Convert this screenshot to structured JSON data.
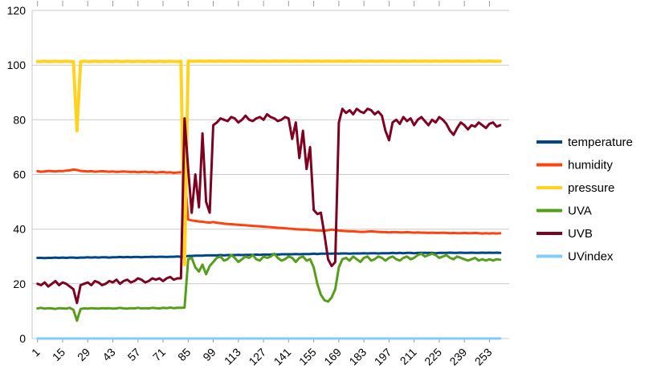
{
  "chart_data": {
    "type": "line",
    "title": "",
    "xlabel": "",
    "ylabel": "",
    "grid": true,
    "legend_position": "right",
    "style": {
      "background": "#ffffff",
      "grid_color": "#c9c9c9",
      "tick_color": "#999999",
      "text_color": "#000000"
    },
    "x": {
      "start": 1,
      "step": 2,
      "count": 130
    },
    "x_axis": {
      "ticks": [
        1,
        15,
        29,
        43,
        57,
        71,
        85,
        99,
        113,
        127,
        141,
        155,
        169,
        183,
        197,
        211,
        225,
        239,
        253
      ],
      "range": [
        -2,
        264
      ]
    },
    "y_axis": {
      "ticks": [
        0,
        20,
        40,
        60,
        80,
        100,
        120
      ],
      "range": [
        0,
        120
      ]
    },
    "series": [
      {
        "name": "temperature",
        "color": "#004586",
        "width": 3,
        "values": [
          29.5,
          29.5,
          29.4,
          29.5,
          29.5,
          29.6,
          29.5,
          29.6,
          29.5,
          29.6,
          29.6,
          29.5,
          29.6,
          29.6,
          29.7,
          29.6,
          29.7,
          29.6,
          29.7,
          29.7,
          29.6,
          29.7,
          29.7,
          29.8,
          29.7,
          29.8,
          29.7,
          29.8,
          29.8,
          29.7,
          29.8,
          29.8,
          29.9,
          29.8,
          29.9,
          29.9,
          29.8,
          29.9,
          29.9,
          30.0,
          29.9,
          30.0,
          30.2,
          30.2,
          30.3,
          30.3,
          30.3,
          30.4,
          30.4,
          30.4,
          30.4,
          30.5,
          30.4,
          30.5,
          30.5,
          30.5,
          30.6,
          30.5,
          30.6,
          30.6,
          30.6,
          30.7,
          30.6,
          30.7,
          30.7,
          30.7,
          30.8,
          30.7,
          30.8,
          30.8,
          30.8,
          30.8,
          30.9,
          30.8,
          30.9,
          30.9,
          30.9,
          31.0,
          30.9,
          31.0,
          31.0,
          31.0,
          31.0,
          31.1,
          31.0,
          31.1,
          31.1,
          31.0,
          31.1,
          31.1,
          31.1,
          31.2,
          31.1,
          31.2,
          31.2,
          31.1,
          31.2,
          31.2,
          31.2,
          31.3,
          31.2,
          31.3,
          31.2,
          31.3,
          31.3,
          31.2,
          31.3,
          31.3,
          31.3,
          31.3,
          31.3,
          31.2,
          31.3,
          31.3,
          31.3,
          31.4,
          31.3,
          31.3,
          31.4,
          31.3,
          31.3,
          31.4,
          31.3,
          31.3,
          31.4,
          31.3,
          31.4,
          31.3,
          31.4,
          31.3
        ]
      },
      {
        "name": "humidity",
        "color": "#ff420e",
        "width": 3,
        "values": [
          61.2,
          61.0,
          61.1,
          61.3,
          61.2,
          61.1,
          61.3,
          61.2,
          61.4,
          61.5,
          61.8,
          61.6,
          61.3,
          61.2,
          61.1,
          61.2,
          61.0,
          61.1,
          61.2,
          61.1,
          61.0,
          61.1,
          60.9,
          61.0,
          61.1,
          61.0,
          60.9,
          61.0,
          60.8,
          60.9,
          61.0,
          60.8,
          60.9,
          60.7,
          60.8,
          60.9,
          60.7,
          60.8,
          60.6,
          60.7,
          60.8,
          60.6,
          43.5,
          43.2,
          43.0,
          42.8,
          42.7,
          42.5,
          42.4,
          42.6,
          42.3,
          42.2,
          42.0,
          41.9,
          41.8,
          41.7,
          41.6,
          41.5,
          41.4,
          41.3,
          41.2,
          41.1,
          41.0,
          40.9,
          40.8,
          40.7,
          40.6,
          40.5,
          40.4,
          40.3,
          40.2,
          40.1,
          40.0,
          39.9,
          39.8,
          39.8,
          39.7,
          39.6,
          39.5,
          39.5,
          39.4,
          39.6,
          39.8,
          39.7,
          39.5,
          39.4,
          39.3,
          39.2,
          39.2,
          39.1,
          39.0,
          39.0,
          39.1,
          39.2,
          39.1,
          39.0,
          38.9,
          38.9,
          38.8,
          38.9,
          38.9,
          38.8,
          38.8,
          38.9,
          38.8,
          38.7,
          38.8,
          38.7,
          38.7,
          38.6,
          38.7,
          38.6,
          38.6,
          38.7,
          38.6,
          38.5,
          38.6,
          38.5,
          38.5,
          38.6,
          38.5,
          38.5,
          38.6,
          38.5,
          38.4,
          38.5,
          38.4,
          38.5,
          38.4,
          38.5
        ]
      },
      {
        "name": "pressure",
        "color": "#ffd320",
        "width": 4,
        "values": [
          101.3,
          101.3,
          101.4,
          101.3,
          101.3,
          101.4,
          101.3,
          101.3,
          101.4,
          101.3,
          101.3,
          76.0,
          101.3,
          101.4,
          101.3,
          101.3,
          101.4,
          101.3,
          101.3,
          101.4,
          101.3,
          101.3,
          101.4,
          101.3,
          101.3,
          101.4,
          101.3,
          101.3,
          101.4,
          101.3,
          101.3,
          101.4,
          101.3,
          101.3,
          101.4,
          101.3,
          101.3,
          101.4,
          101.3,
          101.3,
          101.4,
          27.0,
          101.5,
          101.4,
          101.4,
          101.5,
          101.4,
          101.4,
          101.5,
          101.4,
          101.4,
          101.5,
          101.4,
          101.4,
          101.5,
          101.4,
          101.4,
          101.5,
          101.4,
          101.4,
          101.5,
          101.4,
          101.4,
          101.5,
          101.4,
          101.4,
          101.5,
          101.4,
          101.4,
          101.5,
          101.4,
          101.4,
          101.5,
          101.4,
          101.4,
          101.5,
          101.4,
          101.4,
          101.5,
          101.4,
          101.4,
          101.5,
          101.4,
          101.4,
          101.5,
          101.4,
          101.4,
          101.5,
          101.4,
          101.4,
          101.5,
          101.4,
          101.4,
          101.5,
          101.4,
          101.4,
          101.5,
          101.4,
          101.4,
          101.5,
          101.4,
          101.4,
          101.5,
          101.4,
          101.4,
          101.5,
          101.4,
          101.4,
          101.5,
          101.4,
          101.4,
          101.5,
          101.4,
          101.4,
          101.5,
          101.4,
          101.4,
          101.5,
          101.4,
          101.4,
          101.5,
          101.4,
          101.4,
          101.5,
          101.4,
          101.4,
          101.5,
          101.4,
          101.4,
          101.4
        ]
      },
      {
        "name": "UVA",
        "color": "#579d1c",
        "width": 3,
        "values": [
          11.0,
          11.2,
          10.9,
          11.1,
          11.0,
          10.8,
          11.1,
          11.0,
          10.9,
          11.2,
          10.5,
          6.5,
          10.8,
          11.0,
          10.9,
          11.1,
          11.0,
          10.9,
          11.1,
          11.0,
          11.1,
          10.9,
          11.0,
          11.2,
          11.0,
          10.9,
          11.1,
          11.0,
          11.2,
          11.0,
          11.1,
          11.0,
          11.2,
          11.1,
          11.0,
          11.2,
          11.1,
          11.3,
          11.1,
          11.2,
          11.2,
          11.3,
          29.0,
          29.5,
          26.0,
          24.5,
          27.0,
          23.5,
          26.5,
          28.0,
          29.5,
          30.0,
          28.5,
          29.0,
          30.5,
          29.5,
          28.0,
          29.0,
          30.0,
          29.5,
          30.5,
          29.0,
          28.5,
          30.0,
          29.5,
          30.0,
          31.0,
          29.5,
          28.5,
          29.0,
          30.0,
          29.5,
          28.0,
          29.5,
          30.0,
          28.5,
          29.0,
          26.0,
          20.0,
          16.0,
          14.0,
          13.5,
          15.0,
          18.0,
          26.0,
          29.0,
          29.5,
          28.5,
          30.0,
          29.0,
          28.0,
          29.5,
          30.0,
          28.5,
          29.0,
          30.0,
          29.5,
          28.5,
          29.5,
          30.0,
          29.0,
          28.5,
          29.5,
          30.0,
          29.0,
          29.5,
          30.5,
          31.0,
          30.0,
          30.5,
          31.0,
          30.5,
          29.5,
          30.0,
          30.5,
          29.5,
          29.0,
          30.0,
          29.5,
          29.0,
          28.5,
          29.0,
          29.5,
          28.5,
          29.0,
          28.5,
          29.0,
          28.5,
          29.0,
          28.8
        ]
      },
      {
        "name": "UVB",
        "color": "#7e0021",
        "width": 3,
        "values": [
          20.0,
          19.5,
          20.5,
          19.0,
          20.0,
          21.0,
          19.5,
          20.5,
          20.0,
          19.0,
          18.0,
          13.0,
          19.5,
          20.0,
          20.5,
          19.5,
          21.0,
          20.5,
          19.5,
          20.0,
          21.0,
          20.5,
          21.5,
          20.0,
          21.0,
          21.5,
          20.5,
          21.0,
          22.0,
          21.5,
          20.5,
          21.0,
          22.0,
          21.5,
          22.0,
          21.0,
          22.0,
          22.5,
          21.5,
          22.0,
          22.0,
          80.5,
          62.0,
          46.0,
          60.0,
          48.0,
          75.0,
          50.0,
          46.0,
          78.0,
          79.0,
          80.5,
          80.0,
          79.5,
          81.0,
          80.5,
          79.0,
          80.0,
          81.5,
          80.0,
          79.5,
          80.5,
          81.0,
          80.0,
          82.0,
          81.0,
          80.5,
          79.5,
          80.0,
          81.0,
          80.5,
          73.0,
          79.0,
          66.0,
          76.0,
          62.0,
          70.0,
          47.0,
          45.5,
          46.0,
          38.0,
          29.0,
          26.5,
          28.0,
          79.0,
          84.0,
          82.5,
          83.5,
          82.0,
          84.0,
          83.0,
          82.5,
          84.0,
          83.5,
          82.0,
          83.0,
          81.5,
          76.0,
          72.5,
          79.0,
          80.0,
          78.5,
          81.0,
          79.5,
          80.5,
          78.0,
          80.0,
          81.0,
          79.5,
          78.0,
          80.0,
          79.0,
          81.0,
          80.0,
          78.5,
          76.0,
          74.5,
          77.0,
          79.0,
          78.0,
          76.5,
          78.0,
          77.5,
          79.0,
          78.0,
          77.0,
          78.5,
          79.0,
          77.5,
          78.0
        ]
      },
      {
        "name": "UVindex",
        "color": "#83caff",
        "width": 3,
        "values": [
          0,
          0,
          0,
          0,
          0,
          0,
          0,
          0,
          0,
          0,
          0,
          0,
          0,
          0,
          0,
          0,
          0,
          0,
          0,
          0,
          0,
          0,
          0,
          0,
          0,
          0,
          0,
          0,
          0,
          0,
          0,
          0,
          0,
          0,
          0,
          0,
          0,
          0,
          0,
          0,
          0,
          0,
          0,
          0,
          0,
          0,
          0,
          0,
          0,
          0,
          0,
          0,
          0,
          0,
          0,
          0,
          0,
          0,
          0,
          0,
          0,
          0,
          0,
          0,
          0,
          0,
          0,
          0,
          0,
          0,
          0,
          0,
          0,
          0,
          0,
          0,
          0,
          0,
          0,
          0,
          0,
          0,
          0,
          0,
          0,
          0,
          0,
          0,
          0,
          0,
          0,
          0,
          0,
          0,
          0,
          0,
          0,
          0,
          0,
          0,
          0,
          0,
          0,
          0,
          0,
          0,
          0,
          0,
          0,
          0,
          0,
          0,
          0,
          0,
          0,
          0,
          0,
          0,
          0,
          0,
          0,
          0,
          0,
          0,
          0,
          0,
          0,
          0,
          0,
          0
        ]
      }
    ]
  }
}
